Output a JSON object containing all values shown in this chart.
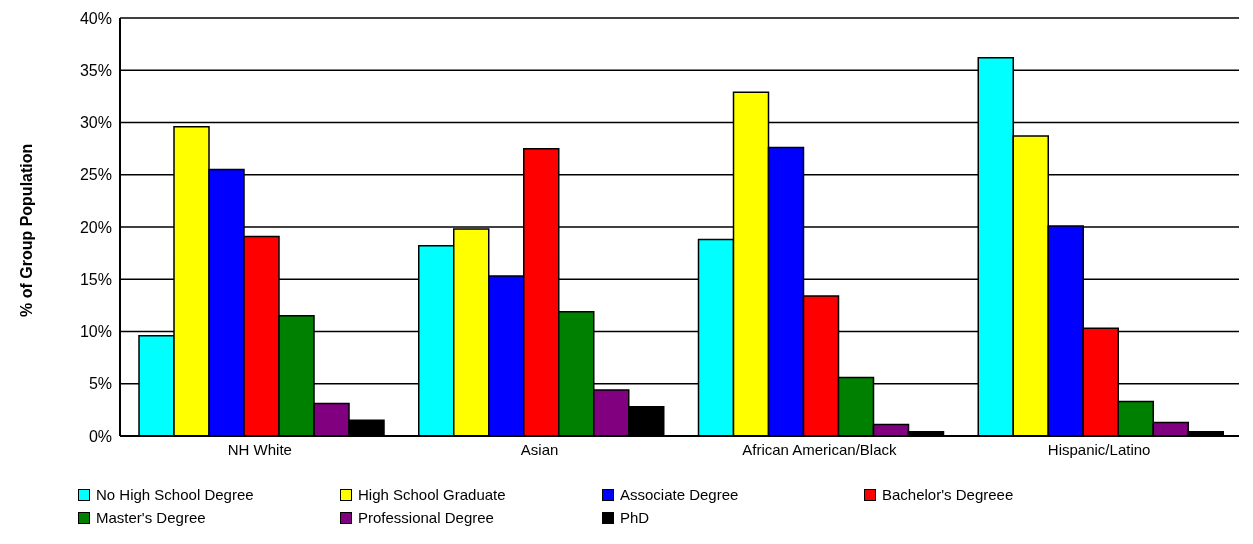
{
  "chart_data": {
    "type": "bar",
    "ylabel": "% of Group Population",
    "categories": [
      "NH White",
      "Asian",
      "African American/Black",
      "Hispanic/Latino"
    ],
    "series": [
      {
        "name": "No High School Degree",
        "color": "#00ffff",
        "values": [
          9.6,
          18.2,
          18.8,
          36.2
        ]
      },
      {
        "name": "High School Graduate",
        "color": "#ffff00",
        "values": [
          29.6,
          19.8,
          32.9,
          28.7
        ]
      },
      {
        "name": "Associate Degree",
        "color": "#0000ff",
        "values": [
          25.5,
          15.3,
          27.6,
          20.1
        ]
      },
      {
        "name": "Bachelor's Degreee",
        "color": "#ff0000",
        "values": [
          19.1,
          27.5,
          13.4,
          10.3
        ]
      },
      {
        "name": "Master's Degree",
        "color": "#008000",
        "values": [
          11.5,
          11.9,
          5.6,
          3.3
        ]
      },
      {
        "name": "Professional Degree",
        "color": "#800080",
        "values": [
          3.1,
          4.4,
          1.1,
          1.3
        ]
      },
      {
        "name": "PhD",
        "color": "#000000",
        "values": [
          1.5,
          2.8,
          0.4,
          0.4
        ]
      }
    ],
    "ylim": [
      0,
      40
    ],
    "yticks": [
      {
        "value": 0,
        "label": "0%"
      },
      {
        "value": 5,
        "label": "5%"
      },
      {
        "value": 10,
        "label": "10%"
      },
      {
        "value": 15,
        "label": "15%"
      },
      {
        "value": 20,
        "label": "20%"
      },
      {
        "value": 25,
        "label": "25%"
      },
      {
        "value": 30,
        "label": "30%"
      },
      {
        "value": 35,
        "label": "35%"
      },
      {
        "value": 40,
        "label": "40%"
      }
    ],
    "grid": "y",
    "legend": "bottom"
  }
}
